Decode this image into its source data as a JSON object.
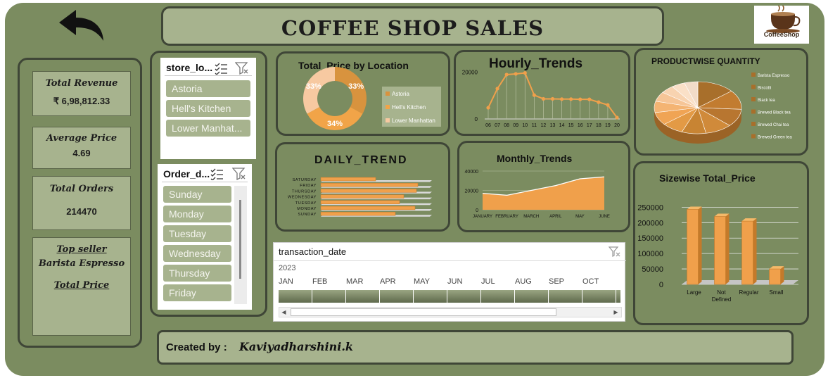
{
  "header": {
    "title": "COFFEE SHOP SALES",
    "logo_text": "CoffeeShop"
  },
  "kpis": {
    "total_revenue_label": "Total Revenue",
    "total_revenue_value": "₹ 6,98,812.33",
    "average_price_label": "Average Price",
    "average_price_value": "4.69",
    "total_orders_label": "Total Orders",
    "total_orders_value": "214470",
    "top_seller_label": "Top seller",
    "top_seller_value": "Barista Espresso",
    "total_price_label": "Total Price"
  },
  "store_slicer": {
    "title": "store_lo...",
    "items": [
      "Astoria",
      "Hell's Kitchen",
      "Lower Manhat..."
    ]
  },
  "order_slicer": {
    "title": "Order_d...",
    "items": [
      "Sunday",
      "Monday",
      "Tuesday",
      "Wednesday",
      "Thursday",
      "Friday"
    ]
  },
  "timeline": {
    "title": "transaction_date",
    "year": "2023",
    "months": [
      "JAN",
      "FEB",
      "MAR",
      "APR",
      "MAY",
      "JUN",
      "JUL",
      "AUG",
      "SEP",
      "OCT"
    ]
  },
  "footer": {
    "label": "Created by :",
    "author": "Kaviyadharshini.k"
  },
  "charts": {
    "location": {
      "title": "Total_Price by Location",
      "legend": [
        "Astoria",
        "Hell's Kitchen",
        "Lower Manhattan"
      ],
      "labels": [
        "33%",
        "34%",
        "33%"
      ],
      "colors": [
        "#d8933e",
        "#f1a448",
        "#f7c9a1"
      ]
    },
    "hourly": {
      "title": "Hourly_Trends"
    },
    "product": {
      "title": "PRODUCTWISE QUANTITY",
      "legend": [
        "Barista Espresso",
        "Biscotti",
        "Black tea",
        "Brewed Black tea",
        "Brewed Chai tea",
        "Brewed Green tea"
      ]
    },
    "daily": {
      "title": "DAILY_TREND"
    },
    "monthly": {
      "title": "Monthly_Trends"
    },
    "size": {
      "title": "Sizewise Total_Price"
    }
  },
  "chart_data": [
    {
      "type": "pie",
      "title": "Total_Price by Location",
      "categories": [
        "Astoria",
        "Hell's Kitchen",
        "Lower Manhattan"
      ],
      "values": [
        33,
        34,
        33
      ]
    },
    {
      "type": "line",
      "title": "Hourly_Trends",
      "categories": [
        "06",
        "07",
        "08",
        "09",
        "10",
        "11",
        "12",
        "13",
        "14",
        "15",
        "16",
        "17",
        "18",
        "19",
        "20"
      ],
      "values": [
        4800,
        13000,
        19000,
        19300,
        19700,
        10200,
        8600,
        8600,
        8500,
        8500,
        8400,
        8400,
        7200,
        6000,
        600
      ],
      "yticks": [
        0,
        20000
      ],
      "ylim": [
        0,
        22000
      ]
    },
    {
      "type": "pie",
      "title": "PRODUCTWISE QUANTITY",
      "categories": [
        "Barista Espresso",
        "Biscotti",
        "Black tea",
        "Brewed Black tea",
        "Brewed Chai tea",
        "Brewed Green tea"
      ]
    },
    {
      "type": "bar",
      "title": "DAILY_TREND",
      "categories": [
        "SATURDAY",
        "FRIDAY",
        "THURSDAY",
        "WEDNESDAY",
        "TUESDAY",
        "MONDAY",
        "SUNDAY"
      ],
      "values": [
        78,
        138,
        136,
        118,
        112,
        134,
        106
      ],
      "xlim": [
        0,
        155
      ]
    },
    {
      "type": "area",
      "title": "Monthly_Trends",
      "categories": [
        "JANUARY",
        "FEBRUARY",
        "MARCH",
        "APRIL",
        "MAY",
        "JUNE"
      ],
      "values": [
        17000,
        15000,
        20000,
        25000,
        32000,
        34000
      ],
      "yticks": [
        0,
        20000,
        40000
      ],
      "ylim": [
        0,
        40000
      ]
    },
    {
      "type": "bar",
      "title": "Sizewise Total_Price",
      "categories": [
        "Large",
        "Not Defined",
        "Regular",
        "Small"
      ],
      "values": [
        243000,
        220000,
        205000,
        50000
      ],
      "yticks": [
        0,
        50000,
        100000,
        150000,
        200000,
        250000
      ],
      "ylim": [
        0,
        260000
      ]
    }
  ]
}
